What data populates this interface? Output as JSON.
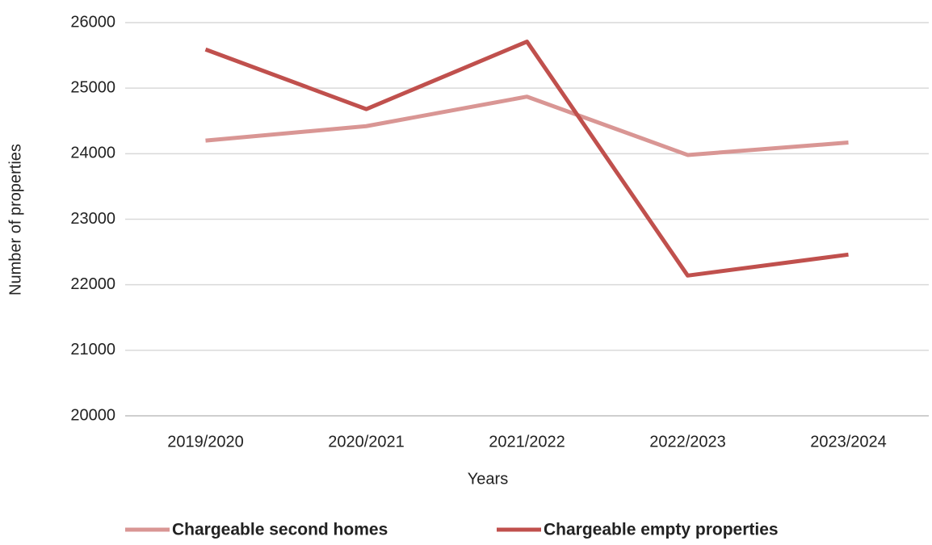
{
  "chart_data": {
    "type": "line",
    "x_label": "Years",
    "y_label": "Number of properties",
    "categories": [
      "2019/2020",
      "2020/2021",
      "2021/2022",
      "2022/2023",
      "2023/2024"
    ],
    "series": [
      {
        "name": "Chargeable second homes",
        "color": "#d99694",
        "values": [
          24200,
          24420,
          24870,
          23980,
          24170
        ]
      },
      {
        "name": "Chargeable empty properties",
        "color": "#c0504d",
        "values": [
          25590,
          24680,
          25710,
          22140,
          22460
        ]
      }
    ],
    "ylim": [
      20000,
      26000
    ],
    "yticks": [
      20000,
      21000,
      22000,
      23000,
      24000,
      25000,
      26000
    ],
    "grid": true,
    "legend": "bottom"
  }
}
